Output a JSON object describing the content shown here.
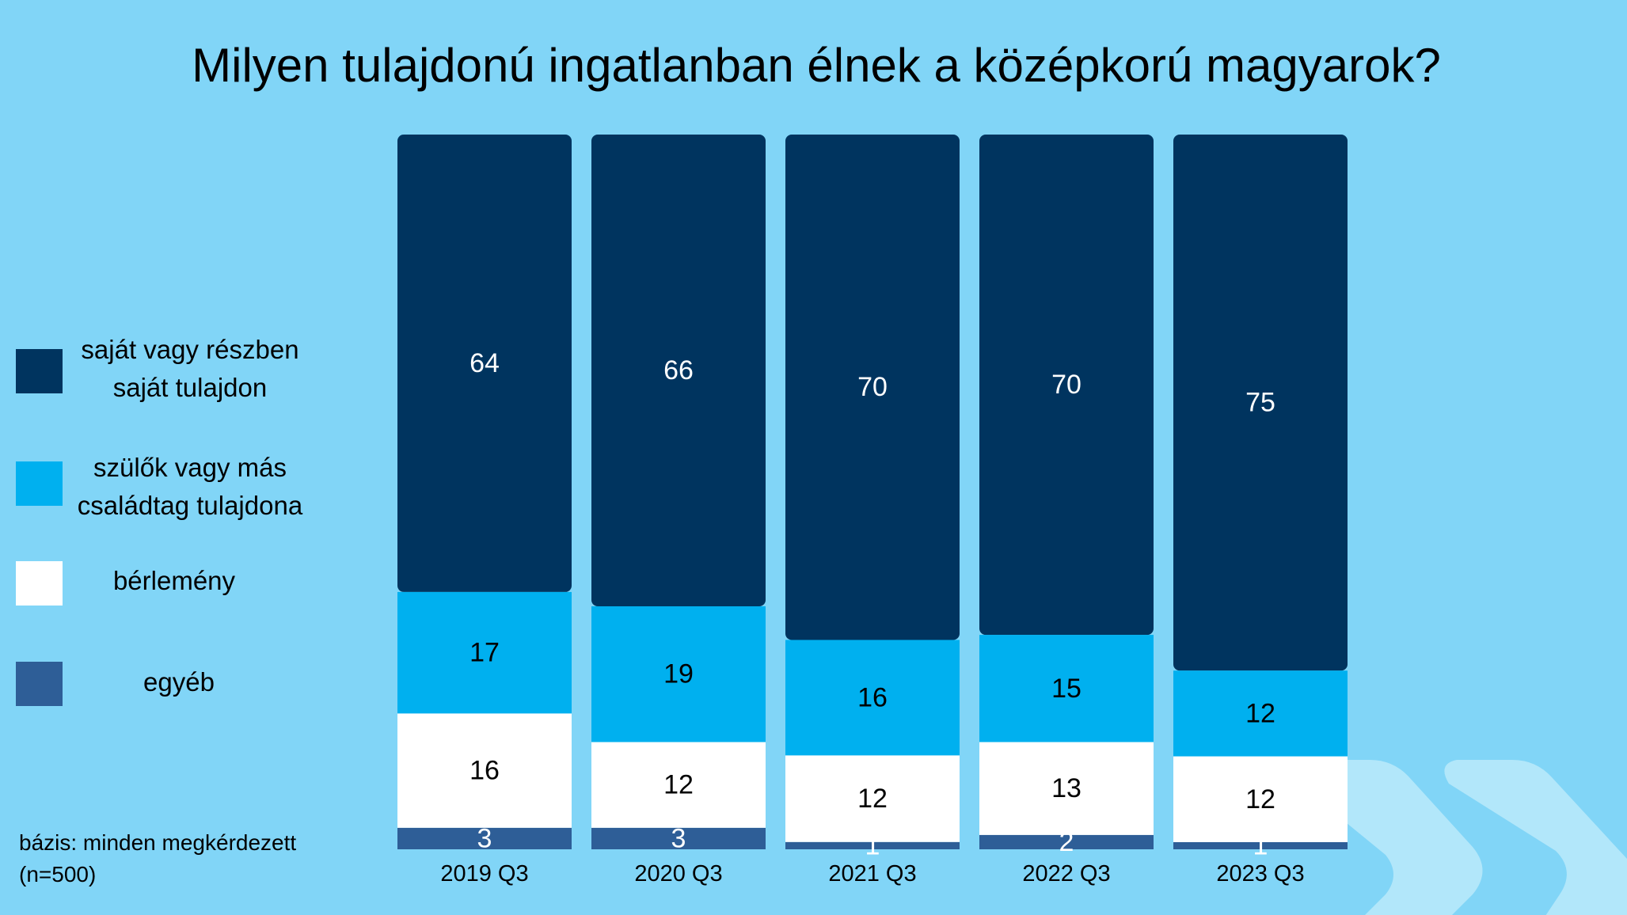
{
  "chart_data": {
    "type": "bar",
    "stacked": true,
    "title": "Milyen tulajdonú ingatlanban élnek a középkorú magyarok?",
    "categories": [
      "2019 Q3",
      "2020 Q3",
      "2021 Q3",
      "2022 Q3",
      "2023 Q3"
    ],
    "series": [
      {
        "name": "saját vagy részben saját tulajdon",
        "color": "#00345f",
        "label_color": "#ffffff",
        "values": [
          64,
          66,
          70,
          70,
          75
        ]
      },
      {
        "name": "szülők vagy más családtag tulajdona",
        "color": "#00b0ef",
        "label_color": "#000000",
        "values": [
          17,
          19,
          16,
          15,
          12
        ]
      },
      {
        "name": "bérlemény",
        "color": "#ffffff",
        "label_color": "#000000",
        "values": [
          16,
          12,
          12,
          13,
          12
        ]
      },
      {
        "name": "egyéb",
        "color": "#2e5e97",
        "label_color": "#ffffff",
        "values": [
          3,
          3,
          1,
          2,
          1
        ]
      }
    ],
    "legend_position": "left",
    "ylim": [
      0,
      100
    ],
    "grid": false
  },
  "legend": {
    "items": [
      {
        "line1": "saját vagy részben",
        "line2": "saját tulajdon"
      },
      {
        "line1": "szülők vagy más",
        "line2": "családtag tulajdona"
      },
      {
        "line1": "bérlemény"
      },
      {
        "line1": "egyéb"
      }
    ]
  },
  "footnote": {
    "line1": "bázis: minden megkérdezett",
    "line2": "(n=500)"
  },
  "colors": {
    "background": "#81d5f7",
    "decoration": "#b5e6f8"
  }
}
